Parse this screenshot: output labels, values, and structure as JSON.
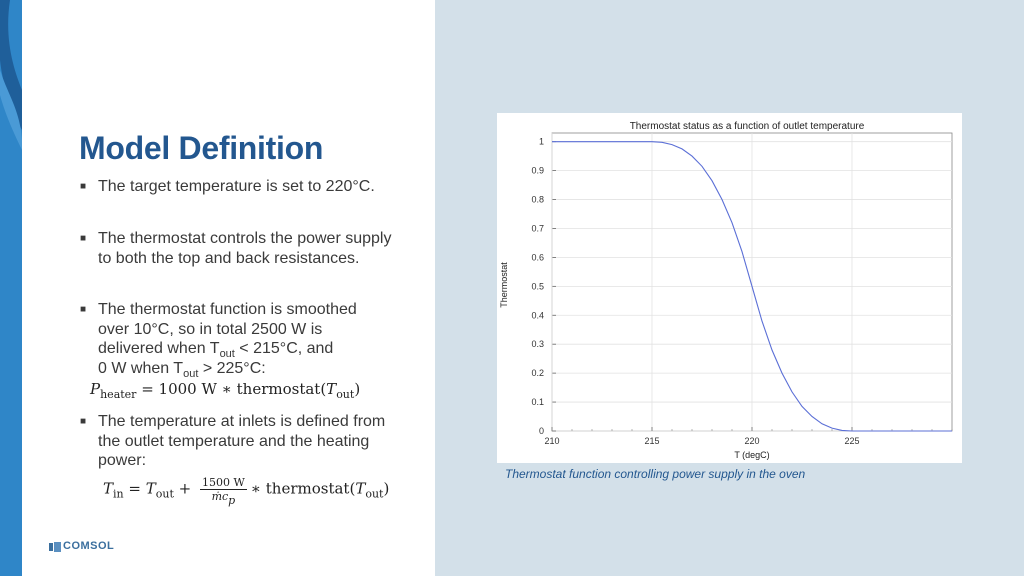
{
  "slide": {
    "title": "Model Definition",
    "logo_text": "COMSOL"
  },
  "bullets": [
    {
      "text": "The target temperature is set to 220°C."
    },
    {
      "text": "The thermostat controls the power supply to both the top and back resistances."
    },
    {
      "line1": "The thermostat function is smoothed",
      "line2": "over 10°C, so in total 2500 W is",
      "line3_pre": "delivered when T",
      "line3_sub": "out",
      "line3_post": " < 215°C, and",
      "line4_pre": "0 W when T",
      "line4_sub": "out",
      "line4_post": " > 225°C:"
    },
    {
      "text": "The temperature at inlets is defined from the outlet temperature and the heating power:"
    }
  ],
  "formulas": {
    "heater": {
      "lhs": "P",
      "lhs_sub": "heater",
      "rhs": " = 1000 W ∗ thermostat(",
      "arg": "T",
      "arg_sub": "out",
      "close": ")"
    },
    "inlet": {
      "lhs": "T",
      "lhs_sub": "in",
      "eq": " = ",
      "t": "T",
      "t_sub": "out",
      "plus": " + ",
      "num": "1500 W",
      "den": "ṁc",
      "den_sub": "p",
      "tail": "∗ thermostat(",
      "arg": "T",
      "arg_sub": "out",
      "close": ")"
    }
  },
  "chart_data": {
    "type": "line",
    "title": "Thermostat status as a function of outlet temperature",
    "xlabel": "T (degC)",
    "ylabel": "Thermostat",
    "xlim": [
      210,
      230
    ],
    "ylim": [
      0,
      1.03
    ],
    "x_ticks": [
      "210",
      "215",
      "220",
      "225"
    ],
    "y_ticks": [
      "0",
      "0.1",
      "0.2",
      "0.3",
      "0.4",
      "0.5",
      "0.6",
      "0.7",
      "0.8",
      "0.9",
      "1"
    ],
    "grid": true,
    "series": [
      {
        "color": "#5b6fd6",
        "x": [
          210,
          215,
          215.5,
          216,
          216.5,
          217,
          217.5,
          218,
          218.5,
          219,
          219.5,
          220,
          220.5,
          221,
          221.5,
          222,
          222.5,
          223,
          223.5,
          224,
          224.5,
          225,
          230
        ],
        "y": [
          1,
          1,
          0.998,
          0.99,
          0.975,
          0.95,
          0.915,
          0.865,
          0.8,
          0.72,
          0.62,
          0.5,
          0.38,
          0.28,
          0.2,
          0.135,
          0.085,
          0.05,
          0.025,
          0.01,
          0.002,
          0,
          0
        ]
      }
    ]
  },
  "caption": "Thermostat function controlling power supply in the oven",
  "colors": {
    "title": "#23578f",
    "accent_strip": "#2f86c8",
    "right_panel": "#d3e0e9"
  }
}
